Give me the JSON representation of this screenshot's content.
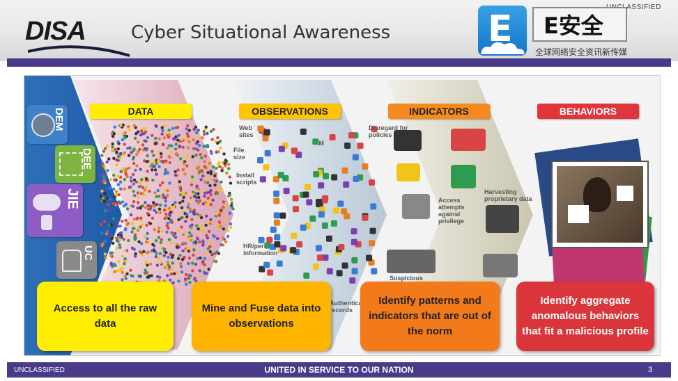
{
  "header": {
    "title": "Cyber Situational Awareness",
    "logo_text": "DISA",
    "classification": "UNCLASSIFIED",
    "brand": {
      "badge_letter": "E",
      "name": "E安全",
      "tagline": "全球网络安全资讯新传媒"
    }
  },
  "sidebar": {
    "items": [
      {
        "label": "DEM",
        "icon": "globe-icon"
      },
      {
        "label": "DEE",
        "icon": "network-tree-icon"
      },
      {
        "label": "JIE",
        "icon": "cloud-database-icon"
      },
      {
        "label": "UC",
        "icon": "phone-headset-icon"
      }
    ]
  },
  "stages": [
    {
      "label": "DATA",
      "description": "Access to all the raw data"
    },
    {
      "label": "OBSERVATIONS",
      "description": "Mine and Fuse data into observations"
    },
    {
      "label": "INDICATORS",
      "description": "Identify patterns and indicators that are out of the norm"
    },
    {
      "label": "BEHAVIORS",
      "description": "Identify aggregate anomalous behaviors that fit a malicious profile"
    }
  ],
  "observation_notes": [
    "Web sites",
    "File size",
    "Install scripts",
    "IM",
    "HR/perf information",
    "Authentication records"
  ],
  "indicator_notes": [
    "Disregard for policies",
    "Access attempts against privilege",
    "Harvesting proprietary data",
    "Suspicious"
  ],
  "footer": {
    "classification": "UNCLASSIFIED",
    "motto": "UNITED IN SERVICE TO OUR NATION",
    "page_number": "3"
  },
  "colors": {
    "purple_bar": "#4b3a8a",
    "data_label": "#ffee00",
    "observations_label": "#ffc400",
    "indicators_label": "#f58a1f",
    "behaviors_label": "#e0353a",
    "data_card": "#ffee00",
    "observations_card": "#ffb400",
    "indicators_card": "#f27a1a",
    "behaviors_card": "#d9353a"
  }
}
